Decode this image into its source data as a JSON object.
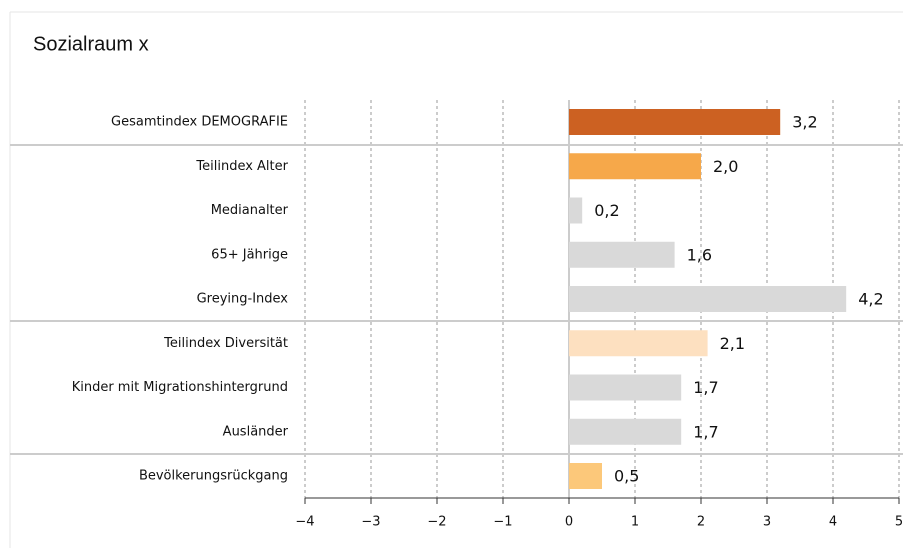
{
  "chart_data": {
    "type": "bar",
    "orientation": "horizontal",
    "title": "Sozialraum x",
    "categories": [
      "Gesamtindex DEMOGRAFIE",
      "Teilindex Alter",
      "Medianalter",
      "65+ Jährige",
      "Greying-Index",
      "Teilindex Diversität",
      "Kinder mit Migrationshintergrund",
      "Ausländer",
      "Bevölkerungsrückgang"
    ],
    "values": [
      3.2,
      2.0,
      0.2,
      1.6,
      4.2,
      2.1,
      1.7,
      1.7,
      0.5
    ],
    "value_labels": [
      "3,2",
      "2,0",
      "0,2",
      "1,6",
      "4,2",
      "2,1",
      "1,7",
      "1,7",
      "0,5"
    ],
    "colors": [
      "#cc6122",
      "#f6a84a",
      "#d9d9d9",
      "#d9d9d9",
      "#d9d9d9",
      "#fde0c0",
      "#d9d9d9",
      "#d9d9d9",
      "#fcc87a"
    ],
    "xlim": [
      -4,
      5
    ],
    "xticks": [
      {
        "value": -4,
        "label": "−4"
      },
      {
        "value": -3,
        "label": "−3"
      },
      {
        "value": -2,
        "label": "−2"
      },
      {
        "value": -1,
        "label": "−1"
      },
      0,
      1,
      2,
      3,
      4,
      5
    ],
    "grid": true
  }
}
